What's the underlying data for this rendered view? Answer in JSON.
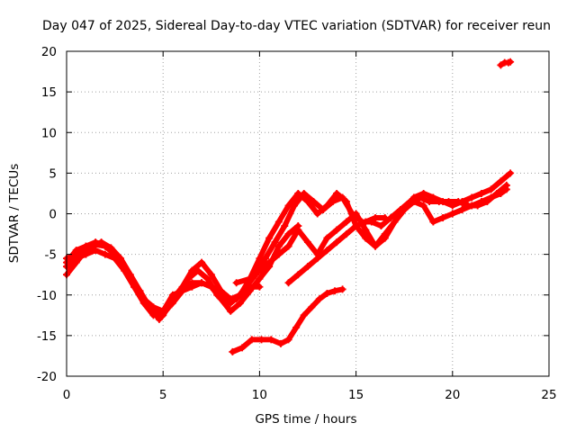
{
  "chart_data": {
    "type": "scatter",
    "title": "Day 047 of 2025, Sidereal Day-to-day VTEC variation (SDTVAR) for receiver reun",
    "xlabel": "GPS time / hours",
    "ylabel": "SDTVAR / TECUs",
    "xlim": [
      0,
      25
    ],
    "ylim": [
      -20,
      20
    ],
    "xticks": [
      0,
      5,
      10,
      15,
      20,
      25
    ],
    "yticks": [
      20,
      15,
      10,
      5,
      0,
      -5,
      -10,
      -15,
      -20
    ],
    "grid": true,
    "grid_style": "dotted",
    "marker": "plus",
    "color": "#ff0000",
    "series": [
      {
        "x": [
          0,
          0.5,
          1,
          1.5,
          1.8,
          2.3,
          2.8,
          3.3,
          3.8,
          4.3,
          4.8,
          5.3,
          5.8,
          6.3,
          6.8,
          7.3,
          7.8,
          8.3,
          8.8,
          9.3,
          9.8,
          10.3,
          10.8,
          11.3,
          11.8,
          12.3,
          12.8,
          13.3,
          13.8,
          14.3,
          14.8,
          15.3,
          15.8,
          16.3,
          16.8,
          17.3,
          17.8,
          18.3,
          18.8,
          19.3,
          19.8,
          20.3,
          20.8,
          21.3,
          21.8,
          22.3,
          22.8
        ],
        "values": [
          -7.5,
          -6,
          -4.5,
          -3.8,
          -3.5,
          -4.2,
          -5.5,
          -7.5,
          -9.5,
          -11.5,
          -13,
          -11.5,
          -10,
          -8,
          -7,
          -8,
          -10,
          -11,
          -10.5,
          -9,
          -7.5,
          -5.5,
          -3.5,
          -1.5,
          1,
          2.5,
          1.5,
          0.5,
          1.5,
          2,
          0,
          -1,
          -1,
          -1.5,
          -0.5,
          0.5,
          1.5,
          2,
          1.5,
          1.5,
          1.5,
          1.5,
          1,
          1,
          1.5,
          2.5,
          3.5
        ]
      },
      {
        "x": [
          0,
          0.5,
          1,
          1.5,
          2,
          2.5,
          3,
          3.5,
          4,
          4.5,
          5,
          5.5,
          6,
          6.5,
          7,
          7.5,
          8,
          8.5,
          9,
          9.5,
          10,
          10.5,
          11,
          11.5,
          12,
          12.5,
          13,
          13.5,
          14,
          14.5,
          15,
          15.5,
          16,
          16.5,
          17,
          17.5,
          18,
          18.5,
          19,
          19.5,
          20,
          20.5,
          21,
          21.5,
          22,
          22.5,
          23
        ],
        "values": [
          -5.5,
          -5,
          -4,
          -3.8,
          -4,
          -5,
          -6.5,
          -8.5,
          -10.5,
          -12,
          -12.5,
          -10.5,
          -9,
          -7,
          -6,
          -7.5,
          -9.5,
          -11,
          -10,
          -8,
          -5.5,
          -3,
          -1,
          1,
          2.5,
          1.5,
          0,
          1,
          2.5,
          1.5,
          -1.5,
          -3,
          -4,
          -2.5,
          -1,
          0.5,
          2,
          2.5,
          2,
          1.5,
          1,
          1.5,
          2,
          2.5,
          3,
          4,
          5
        ]
      },
      {
        "x": [
          0,
          0.5,
          1,
          1.5,
          2,
          2.5,
          3,
          3.5,
          4,
          4.5,
          5,
          5.5,
          6,
          6.5,
          7,
          7.5,
          8,
          8.5,
          9,
          9.5,
          10,
          10.5,
          11,
          11.5,
          12
        ],
        "values": [
          -6.5,
          -5.5,
          -5,
          -4.5,
          -5,
          -5.5,
          -7,
          -9,
          -11,
          -12.5,
          -12,
          -10,
          -9.5,
          -9,
          -8.5,
          -9,
          -10.5,
          -12,
          -11,
          -9.5,
          -8,
          -6.5,
          -4,
          -2.5,
          -1.5
        ]
      },
      {
        "x": [
          0,
          0.5,
          1,
          1.5,
          2,
          2.5,
          3,
          3.5,
          4,
          4.5,
          5,
          5.5,
          6,
          6.5,
          7,
          7.5,
          8,
          8.5,
          9,
          9.5,
          10
        ],
        "values": [
          -6,
          -4.5,
          -4,
          -3.5,
          -4,
          -5,
          -7,
          -9,
          -10.5,
          -11.5,
          -12,
          -11,
          -9.5,
          -8.5,
          -8.5,
          -9,
          -9.5,
          -10.5,
          -10,
          -9,
          -9
        ]
      },
      {
        "x": [
          8.8,
          9.5,
          10,
          10.5,
          11,
          11.5,
          12,
          12.5,
          13,
          13.5,
          14,
          14.5,
          15,
          15.5,
          16,
          16.5,
          17,
          17.5,
          18,
          18.5,
          19,
          19.5,
          20,
          20.5,
          21,
          21.5,
          22,
          22.5,
          22.8
        ],
        "values": [
          -8.5,
          -8,
          -7,
          -6,
          -5,
          -4,
          -2,
          -3.5,
          -5,
          -3,
          -2,
          -1,
          0,
          -2,
          -4,
          -3,
          -1,
          0.5,
          1.5,
          1,
          -1,
          -0.5,
          0,
          0.5,
          1,
          1.5,
          2,
          2.5,
          3
        ]
      },
      {
        "x": [
          8.6,
          9.1,
          9.6,
          10.1,
          10.6,
          11.1,
          11.5,
          11.9,
          12.3,
          12.7,
          13.1,
          13.5,
          13.9,
          14.3
        ],
        "values": [
          -17,
          -16.5,
          -15.5,
          -15.5,
          -15.5,
          -16,
          -15.5,
          -14,
          -12.5,
          -11.5,
          -10.5,
          -9.8,
          -9.5,
          -9.3
        ]
      },
      {
        "x": [
          11.5,
          12,
          12.5,
          13,
          13.5,
          14,
          14.5,
          15,
          15.5,
          16,
          16.5
        ],
        "values": [
          -8.5,
          -7.5,
          -6.5,
          -5.5,
          -4.5,
          -3.5,
          -2.5,
          -1.5,
          -1,
          -0.5,
          -0.5
        ]
      },
      {
        "x": [
          22.5,
          22.7,
          22.9,
          23
        ],
        "values": [
          18.3,
          18.6,
          18.6,
          18.7
        ]
      }
    ]
  }
}
